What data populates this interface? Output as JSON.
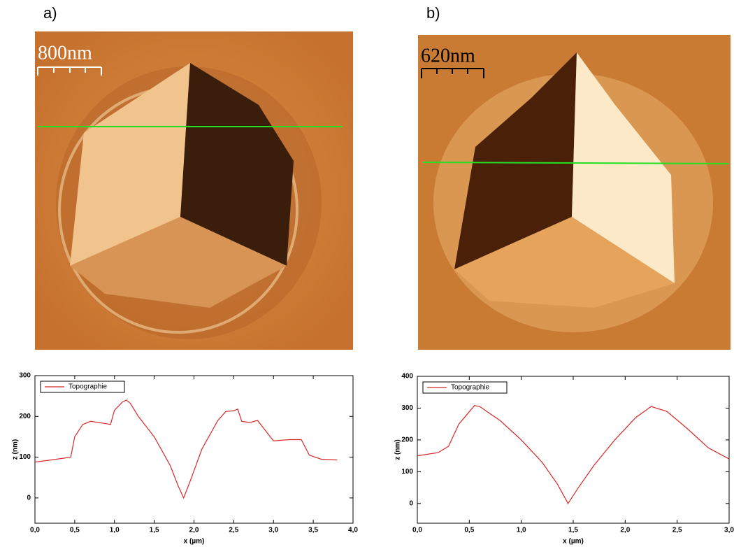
{
  "chart_data": [
    {
      "type": "line",
      "panel_label": "a)",
      "image_scale_label": "800nm",
      "xlabel": "x (µm)",
      "ylabel": "z (nm)",
      "x": [
        0,
        0.2,
        0.45,
        0.5,
        0.6,
        0.7,
        0.9,
        0.95,
        1.0,
        1.1,
        1.15,
        1.2,
        1.3,
        1.5,
        1.7,
        1.8,
        1.87,
        1.95,
        2.1,
        2.3,
        2.4,
        2.5,
        2.55,
        2.6,
        2.7,
        2.8,
        2.9,
        3.0,
        3.2,
        3.35,
        3.45,
        3.6,
        3.8
      ],
      "series": [
        {
          "name": "Topographie",
          "color": "#d62728",
          "values": [
            88,
            93,
            100,
            150,
            180,
            188,
            182,
            180,
            215,
            235,
            240,
            232,
            200,
            150,
            80,
            30,
            0,
            40,
            120,
            190,
            212,
            214,
            218,
            188,
            185,
            190,
            165,
            140,
            143,
            143,
            105,
            95,
            93
          ]
        }
      ],
      "xlim": [
        0,
        4
      ],
      "ylim": [
        -62,
        300
      ],
      "xticks": [
        {
          "value": 0,
          "label": "0,0"
        },
        {
          "value": 0.5,
          "label": "0,5"
        },
        {
          "value": 1,
          "label": "1,0"
        },
        {
          "value": 1.5,
          "label": "1,5"
        },
        {
          "value": 2,
          "label": "2,0"
        },
        {
          "value": 2.5,
          "label": "2,5"
        },
        {
          "value": 3,
          "label": "3,0"
        },
        {
          "value": 3.5,
          "label": "3,5"
        },
        {
          "value": 4,
          "label": "4,0"
        }
      ],
      "yticks": [
        0,
        100,
        200,
        300
      ],
      "legend": "upper left"
    },
    {
      "type": "line",
      "panel_label": "b)",
      "image_scale_label": "620nm",
      "xlabel": "x (µm)",
      "ylabel": "z (nm)",
      "x": [
        0,
        0.2,
        0.3,
        0.4,
        0.55,
        0.6,
        0.8,
        1.0,
        1.2,
        1.35,
        1.45,
        1.55,
        1.7,
        1.9,
        2.1,
        2.25,
        2.4,
        2.6,
        2.8,
        3.0
      ],
      "series": [
        {
          "name": "Topographie",
          "color": "#d62728",
          "values": [
            150,
            160,
            180,
            250,
            308,
            305,
            260,
            200,
            130,
            60,
            0,
            50,
            120,
            200,
            270,
            305,
            290,
            235,
            175,
            140
          ]
        }
      ],
      "xlim": [
        0,
        3
      ],
      "ylim": [
        -62,
        400
      ],
      "xticks": [
        {
          "value": 0,
          "label": "0,0"
        },
        {
          "value": 0.5,
          "label": "0,5"
        },
        {
          "value": 1,
          "label": "1,0"
        },
        {
          "value": 1.5,
          "label": "1,5"
        },
        {
          "value": 2,
          "label": "2,0"
        },
        {
          "value": 2.5,
          "label": "2,5"
        },
        {
          "value": 3,
          "label": "3,0"
        }
      ],
      "yticks": [
        0,
        100,
        200,
        300,
        400
      ],
      "legend": "upper left"
    }
  ]
}
